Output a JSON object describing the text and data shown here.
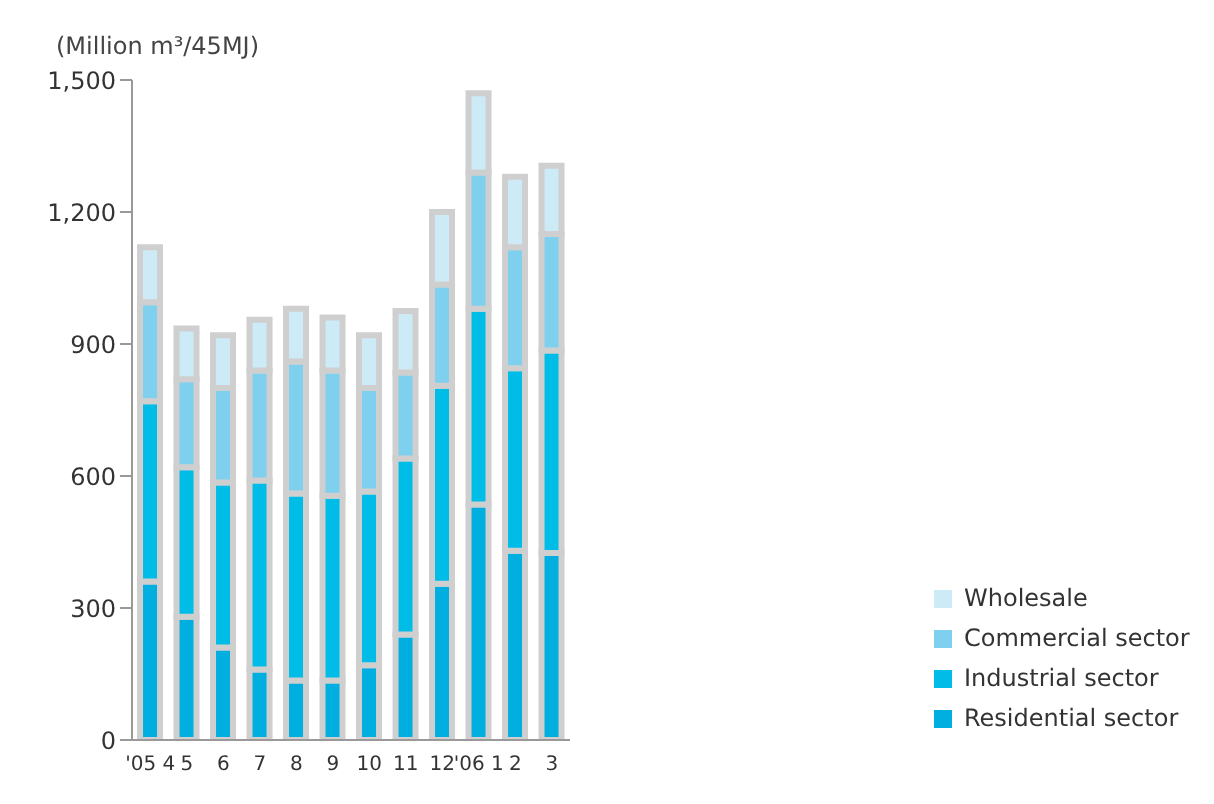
{
  "chart_data": {
    "type": "bar",
    "stacked": true,
    "ylabel": "(Million m³/45MJ)",
    "categories": [
      "'05 4",
      "5",
      "6",
      "7",
      "8",
      "9",
      "10",
      "11",
      "12",
      "'06 1",
      "2",
      "3"
    ],
    "series": [
      {
        "name": "Residential sector",
        "color": "#00aee0",
        "values": [
          360,
          280,
          210,
          160,
          135,
          135,
          170,
          240,
          355,
          535,
          430,
          425
        ]
      },
      {
        "name": "Industrial sector",
        "color": "#00bde8",
        "values": [
          410,
          340,
          375,
          430,
          425,
          420,
          395,
          400,
          450,
          445,
          415,
          460
        ]
      },
      {
        "name": "Commercial sector",
        "color": "#7fd0ef",
        "values": [
          225,
          200,
          215,
          250,
          300,
          285,
          235,
          195,
          230,
          310,
          275,
          265
        ]
      },
      {
        "name": "Wholesale",
        "color": "#cdebf7",
        "values": [
          125,
          115,
          120,
          115,
          120,
          120,
          120,
          140,
          165,
          180,
          160,
          155
        ]
      }
    ],
    "ylim": [
      0,
      1500
    ],
    "yticks": [
      0,
      300,
      600,
      900,
      {
        "value": 1200,
        "label": "1,200"
      },
      {
        "value": 1500,
        "label": "1,500"
      }
    ],
    "grid": false,
    "legend": "bottom right"
  }
}
